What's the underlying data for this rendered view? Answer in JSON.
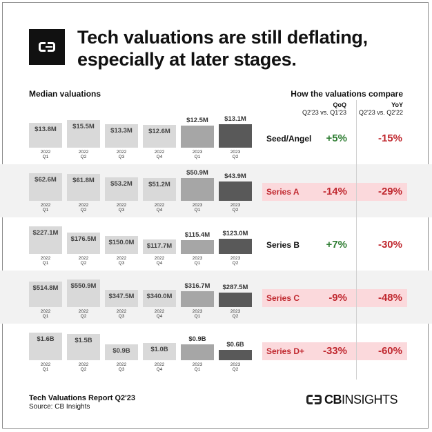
{
  "title": "Tech valuations are still deflating, especially at later stages.",
  "left_header": "Median valuations",
  "right_header": "How the valuations compare",
  "qoq_header": {
    "label": "QoQ",
    "sub": "Q2'23 vs. Q1'23"
  },
  "yoy_header": {
    "label": "YoY",
    "sub": "Q2'23 vs. Q2'22"
  },
  "footer": {
    "title": "Tech Valuations Report Q2'23",
    "source": "Source: CB Insights"
  },
  "brand": {
    "bold": "CB",
    "thin": "INSIGHTS"
  },
  "colors": {
    "prev": "#d9d9d9",
    "q1_2023": "#a6a6a6",
    "q2_2023": "#595959",
    "positive": "#2e7d32",
    "negative": "#c0282f",
    "highlight": "#fbd9dc"
  },
  "chart_data": {
    "type": "bar",
    "categories": [
      {
        "year": "2022",
        "q": "Q1"
      },
      {
        "year": "2022",
        "q": "Q2"
      },
      {
        "year": "2022",
        "q": "Q3"
      },
      {
        "year": "2022",
        "q": "Q4"
      },
      {
        "year": "2023",
        "q": "Q1"
      },
      {
        "year": "2023",
        "q": "Q2"
      }
    ],
    "series": [
      {
        "stage": "Seed/Angel",
        "highlight": false,
        "values": [
          13.8,
          15.5,
          13.3,
          12.6,
          12.5,
          13.1
        ],
        "labels": [
          "$13.8M",
          "$15.5M",
          "$13.3M",
          "$12.6M",
          "$12.5M",
          "$13.1M"
        ],
        "qoq": "+5%",
        "yoy": "-15%",
        "qoq_sign": "pos",
        "yoy_sign": "neg"
      },
      {
        "stage": "Series A",
        "highlight": true,
        "values": [
          62.6,
          61.8,
          53.2,
          51.2,
          50.9,
          43.9
        ],
        "labels": [
          "$62.6M",
          "$61.8M",
          "$53.2M",
          "$51.2M",
          "$50.9M",
          "$43.9M"
        ],
        "qoq": "-14%",
        "yoy": "-29%",
        "qoq_sign": "neg",
        "yoy_sign": "neg"
      },
      {
        "stage": "Series B",
        "highlight": false,
        "values": [
          227.1,
          176.5,
          150.0,
          117.7,
          115.4,
          123.0
        ],
        "labels": [
          "$227.1M",
          "$176.5M",
          "$150.0M",
          "$117.7M",
          "$115.4M",
          "$123.0M"
        ],
        "qoq": "+7%",
        "yoy": "-30%",
        "qoq_sign": "pos",
        "yoy_sign": "neg"
      },
      {
        "stage": "Series C",
        "highlight": true,
        "values": [
          514.8,
          550.9,
          347.5,
          340.0,
          316.7,
          287.5
        ],
        "labels": [
          "$514.8M",
          "$550.9M",
          "$347.5M",
          "$340.0M",
          "$316.7M",
          "$287.5M"
        ],
        "qoq": "-9%",
        "yoy": "-48%",
        "qoq_sign": "neg",
        "yoy_sign": "neg"
      },
      {
        "stage": "Series D+",
        "highlight": true,
        "values": [
          1.6,
          1.5,
          0.9,
          1.0,
          0.9,
          0.6
        ],
        "labels": [
          "$1.6B",
          "$1.5B",
          "$0.9B",
          "$1.0B",
          "$0.9B",
          "$0.6B"
        ],
        "qoq": "-33%",
        "yoy": "-60%",
        "qoq_sign": "neg",
        "yoy_sign": "neg"
      }
    ]
  }
}
